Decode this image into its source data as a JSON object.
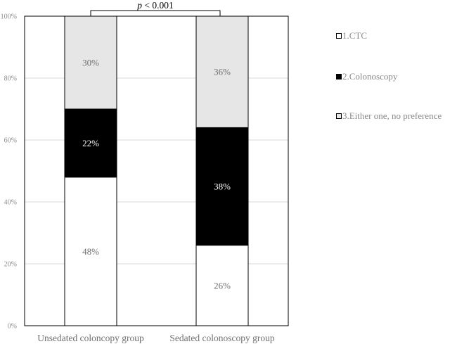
{
  "chart_data": {
    "type": "bar",
    "stacked": true,
    "categories": [
      "Unsedated coloncopy group",
      "Sedated colonoscopy group"
    ],
    "series": [
      {
        "name": "1.CTC",
        "values": [
          48,
          26
        ],
        "color": "#ffffff",
        "label_color": "#6f6f6f",
        "labels": [
          "48%",
          "26%"
        ]
      },
      {
        "name": "2.Colonoscopy",
        "values": [
          22,
          38
        ],
        "color": "#000000",
        "label_color": "#ffffff",
        "labels": [
          "22%",
          "38%"
        ]
      },
      {
        "name": "3.Either one, no preference",
        "values": [
          30,
          36
        ],
        "color": "#e6e6e6",
        "label_color": "#6f6f6f",
        "labels": [
          "30%",
          "36%"
        ]
      }
    ],
    "y_ticks": [
      "0%",
      "20%",
      "40%",
      "60%",
      "80%",
      "100%"
    ],
    "ylim": [
      0,
      100
    ],
    "grid": true,
    "legend_position": "right",
    "significance": {
      "p_symbol": "p",
      "text": " < 0.001"
    }
  }
}
